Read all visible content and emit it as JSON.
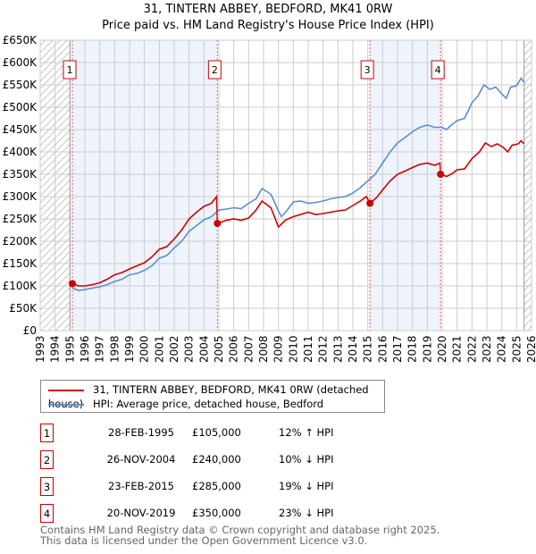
{
  "title_line1": "31, TINTERN ABBEY, BEDFORD, MK41 0RW",
  "title_line2": "Price paid vs. HM Land Registry's House Price Index (HPI)",
  "chart_data": {
    "type": "line",
    "xlim": [
      1993,
      2026
    ],
    "ylim": [
      0,
      650000
    ],
    "yticks": [
      0,
      50000,
      100000,
      150000,
      200000,
      250000,
      300000,
      350000,
      400000,
      450000,
      500000,
      550000,
      600000,
      650000
    ],
    "ytick_labels": [
      "£0",
      "£50K",
      "£100K",
      "£150K",
      "£200K",
      "£250K",
      "£300K",
      "£350K",
      "£400K",
      "£450K",
      "£500K",
      "£550K",
      "£600K",
      "£650K"
    ],
    "xticks": [
      1993,
      1994,
      1995,
      1996,
      1997,
      1998,
      1999,
      2000,
      2001,
      2002,
      2003,
      2004,
      2005,
      2006,
      2007,
      2008,
      2009,
      2010,
      2011,
      2012,
      2013,
      2014,
      2015,
      2016,
      2017,
      2018,
      2019,
      2020,
      2021,
      2022,
      2023,
      2024,
      2025,
      2026
    ],
    "grid": true,
    "colors": {
      "property": "#cc0000",
      "hpi": "#5b8fd0",
      "shade": "#eef3fc"
    },
    "series": [
      {
        "name": "31, TINTERN ABBEY, BEDFORD, MK41 0RW (detached house)",
        "x": [
          1995.15,
          1995.6,
          1996,
          1996.5,
          1997,
          1997.5,
          1998,
          1998.5,
          1999,
          1999.5,
          2000,
          2000.5,
          2001,
          2001.5,
          2002,
          2002.5,
          2003,
          2003.5,
          2004,
          2004.5,
          2004.85,
          2004.9,
          2005.5,
          2006,
          2006.5,
          2007,
          2007.5,
          2007.9,
          2008.5,
          2009,
          2009.5,
          2010,
          2010.5,
          2011,
          2011.5,
          2012,
          2012.5,
          2013,
          2013.5,
          2014,
          2014.5,
          2014.9,
          2015.15,
          2015.6,
          2016,
          2016.5,
          2017,
          2017.5,
          2018,
          2018.5,
          2019,
          2019.5,
          2019.85,
          2019.9,
          2020.3,
          2020.7,
          2021,
          2021.5,
          2022,
          2022.5,
          2022.9,
          2023.3,
          2023.7,
          2024.1,
          2024.4,
          2024.7,
          2025.1,
          2025.3,
          2025.5
        ],
        "values": [
          105000,
          100000,
          100000,
          103000,
          107000,
          115000,
          125000,
          130000,
          138000,
          145000,
          152000,
          165000,
          182000,
          188000,
          205000,
          225000,
          250000,
          265000,
          278000,
          285000,
          300000,
          240000,
          247000,
          250000,
          247000,
          252000,
          270000,
          290000,
          275000,
          232000,
          248000,
          255000,
          260000,
          265000,
          260000,
          262000,
          265000,
          268000,
          270000,
          280000,
          290000,
          300000,
          285000,
          298000,
          315000,
          335000,
          350000,
          357000,
          365000,
          372000,
          375000,
          370000,
          375000,
          350000,
          345000,
          352000,
          360000,
          362000,
          385000,
          400000,
          420000,
          412000,
          418000,
          410000,
          400000,
          415000,
          418000,
          425000,
          418000
        ]
      },
      {
        "name": "HPI: Average price, detached house, Bedford",
        "x": [
          1995.15,
          1995.6,
          1996,
          1996.5,
          1997,
          1997.5,
          1998,
          1998.5,
          1999,
          1999.5,
          2000,
          2000.5,
          2001,
          2001.5,
          2002,
          2002.5,
          2003,
          2003.5,
          2004,
          2004.5,
          2005,
          2005.5,
          2006,
          2006.5,
          2007,
          2007.5,
          2007.9,
          2008.5,
          2009,
          2009.2,
          2009.6,
          2010,
          2010.5,
          2011,
          2011.5,
          2012,
          2012.5,
          2013,
          2013.5,
          2014,
          2014.5,
          2015,
          2015.5,
          2016,
          2016.5,
          2017,
          2017.5,
          2018,
          2018.5,
          2019,
          2019.5,
          2020,
          2020.3,
          2020.6,
          2021,
          2021.5,
          2022,
          2022.4,
          2022.8,
          2023.2,
          2023.6,
          2024,
          2024.3,
          2024.6,
          2025,
          2025.3,
          2025.5
        ],
        "values": [
          95000,
          90000,
          92000,
          95000,
          98000,
          103000,
          110000,
          115000,
          125000,
          128000,
          135000,
          145000,
          162000,
          168000,
          185000,
          200000,
          222000,
          235000,
          248000,
          255000,
          270000,
          272000,
          275000,
          273000,
          285000,
          295000,
          318000,
          305000,
          268000,
          255000,
          270000,
          288000,
          290000,
          285000,
          287000,
          290000,
          295000,
          298000,
          300000,
          308000,
          320000,
          335000,
          350000,
          375000,
          400000,
          420000,
          432000,
          445000,
          455000,
          460000,
          455000,
          455000,
          450000,
          460000,
          470000,
          475000,
          510000,
          525000,
          550000,
          540000,
          545000,
          530000,
          520000,
          545000,
          548000,
          565000,
          556000
        ]
      }
    ],
    "sales": [
      {
        "label": "1",
        "x": 1995.16,
        "value": 105000
      },
      {
        "label": "2",
        "x": 2004.9,
        "value": 240000
      },
      {
        "label": "3",
        "x": 2015.15,
        "value": 285000
      },
      {
        "label": "4",
        "x": 2019.89,
        "value": 350000
      }
    ],
    "shaded_ranges": [
      [
        1995.16,
        2004.9
      ],
      [
        2015.15,
        2019.89
      ]
    ],
    "hatched_ranges": [
      [
        1993,
        1995.0
      ],
      [
        2025.5,
        2026
      ]
    ]
  },
  "legend": {
    "property": "31, TINTERN ABBEY, BEDFORD, MK41 0RW (detached house)",
    "hpi": "HPI: Average price, detached house, Bedford"
  },
  "transactions": [
    {
      "num": "1",
      "date": "28-FEB-1995",
      "price": "£105,000",
      "hpi": "12% ↑ HPI"
    },
    {
      "num": "2",
      "date": "26-NOV-2004",
      "price": "£240,000",
      "hpi": "10% ↓ HPI"
    },
    {
      "num": "3",
      "date": "23-FEB-2015",
      "price": "£285,000",
      "hpi": "19% ↓ HPI"
    },
    {
      "num": "4",
      "date": "20-NOV-2019",
      "price": "£350,000",
      "hpi": "23% ↓ HPI"
    }
  ],
  "footer_line1": "Contains HM Land Registry data © Crown copyright and database right 2025.",
  "footer_line2": "This data is licensed under the Open Government Licence v3.0."
}
